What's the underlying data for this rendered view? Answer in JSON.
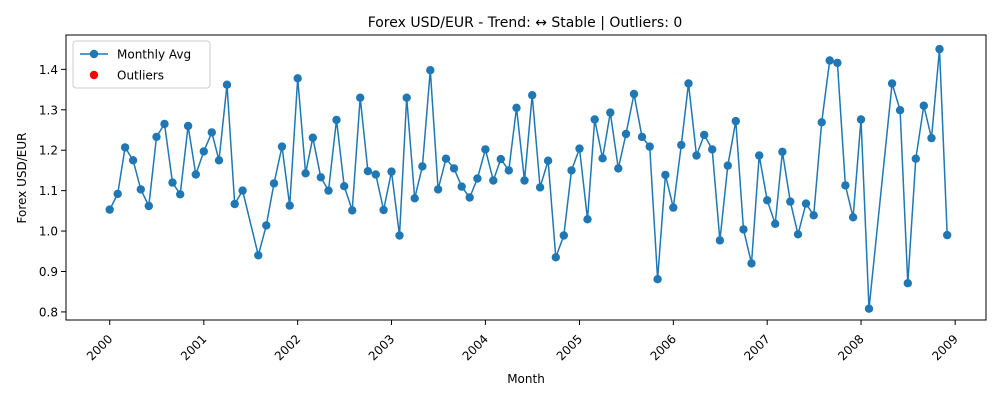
{
  "chart_data": {
    "type": "line",
    "title": "Forex USD/EUR - Trend: ↔ Stable | Outliers: 0",
    "xlabel": "Month",
    "ylabel": "Forex USD/EUR",
    "x_axis": {
      "type": "date",
      "range": [
        "1999-07-15",
        "2009-05-01"
      ],
      "ticks": [
        {
          "value": "2000-01-01",
          "label": "2000"
        },
        {
          "value": "2001-01-01",
          "label": "2001"
        },
        {
          "value": "2002-01-01",
          "label": "2002"
        },
        {
          "value": "2003-01-01",
          "label": "2003"
        },
        {
          "value": "2004-01-01",
          "label": "2004"
        },
        {
          "value": "2005-01-01",
          "label": "2005"
        },
        {
          "value": "2006-01-01",
          "label": "2006"
        },
        {
          "value": "2007-01-01",
          "label": "2007"
        },
        {
          "value": "2008-01-01",
          "label": "2008"
        },
        {
          "value": "2009-01-01",
          "label": "2009"
        }
      ]
    },
    "y_axis": {
      "range": [
        0.78,
        1.485
      ],
      "ticks": [
        {
          "value": 0.8,
          "label": "0.8"
        },
        {
          "value": 0.9,
          "label": "0.9"
        },
        {
          "value": 1.0,
          "label": "1.0"
        },
        {
          "value": 1.1,
          "label": "1.1"
        },
        {
          "value": 1.2,
          "label": "1.2"
        },
        {
          "value": 1.3,
          "label": "1.3"
        },
        {
          "value": 1.4,
          "label": "1.4"
        }
      ]
    },
    "grid": false,
    "legend": {
      "placement": "top-left",
      "entries": [
        {
          "label": "Monthly Avg",
          "marker": "line-circle",
          "color": "#1f77b4"
        },
        {
          "label": "Outliers",
          "marker": "circle",
          "color": "#ff0000"
        }
      ]
    },
    "series": [
      {
        "name": "Monthly Avg",
        "color": "#1f77b4",
        "x": [
          "2000-01-01",
          "2000-02-01",
          "2000-03-01",
          "2000-04-01",
          "2000-05-01",
          "2000-06-01",
          "2000-07-01",
          "2000-08-01",
          "2000-09-01",
          "2000-10-01",
          "2000-11-01",
          "2000-12-01",
          "2001-01-01",
          "2001-02-01",
          "2001-03-01",
          "2001-04-01",
          "2001-05-01",
          "2001-06-01",
          "2001-07-01",
          "2001-08-01",
          "2001-09-01",
          "2001-10-01",
          "2001-11-01",
          "2001-12-01",
          "2002-01-01",
          "2002-02-01",
          "2002-03-01",
          "2002-04-01",
          "2002-05-01",
          "2002-06-01",
          "2002-07-01",
          "2002-08-01",
          "2002-09-01",
          "2002-10-01",
          "2002-11-01",
          "2002-12-01",
          "2003-01-01",
          "2003-02-01",
          "2003-03-01",
          "2003-04-01",
          "2003-05-01",
          "2003-06-01",
          "2003-07-01",
          "2003-08-01",
          "2003-09-01",
          "2003-10-01",
          "2003-11-01",
          "2003-12-01",
          "2004-01-01",
          "2004-02-01",
          "2004-03-01",
          "2004-04-01",
          "2004-05-01",
          "2004-06-01",
          "2004-07-01",
          "2004-08-01",
          "2004-09-01",
          "2004-10-01",
          "2004-11-01",
          "2004-12-01",
          "2005-01-01",
          "2005-02-01",
          "2005-03-01",
          "2005-04-01",
          "2005-05-01",
          "2005-06-01",
          "2005-07-01",
          "2005-08-01",
          "2005-09-01",
          "2005-10-01",
          "2005-11-01",
          "2005-12-01",
          "2006-01-01",
          "2006-02-01",
          "2006-03-01",
          "2006-04-01",
          "2006-05-01",
          "2006-06-01",
          "2006-07-01",
          "2006-08-01",
          "2006-09-01",
          "2006-10-01",
          "2006-11-01",
          "2006-12-01",
          "2007-01-01",
          "2007-02-01",
          "2007-03-01",
          "2007-04-01",
          "2007-05-01",
          "2007-06-01",
          "2007-07-01",
          "2007-08-01",
          "2007-09-01",
          "2007-10-01",
          "2007-11-01",
          "2007-12-01",
          "2008-01-01",
          "2008-02-01",
          "2008-03-01",
          "2008-04-01",
          "2008-05-01",
          "2008-06-01",
          "2008-07-01",
          "2008-08-01",
          "2008-09-01",
          "2008-10-01",
          "2008-11-01",
          "2008-12-01"
        ],
        "y": [
          1.053,
          1.092,
          1.207,
          1.175,
          1.103,
          1.062,
          1.233,
          1.265,
          1.12,
          1.091,
          1.26,
          1.14,
          1.197,
          1.244,
          1.175,
          1.362,
          1.067,
          1.1,
          null,
          0.94,
          1.014,
          1.118,
          1.209,
          1.063,
          1.378,
          1.143,
          1.231,
          1.133,
          1.1,
          1.275,
          1.111,
          1.051,
          1.33,
          1.148,
          1.14,
          1.052,
          1.147,
          0.989,
          1.33,
          1.081,
          1.16,
          1.398,
          1.103,
          1.179,
          1.155,
          1.11,
          1.083,
          1.13,
          1.202,
          1.125,
          1.178,
          1.15,
          1.305,
          1.125,
          1.336,
          1.108,
          1.174,
          0.935,
          0.989,
          1.15,
          1.204,
          1.029,
          1.276,
          1.18,
          1.293,
          1.155,
          1.24,
          1.339,
          1.233,
          1.209,
          0.881,
          1.139,
          1.058,
          1.213,
          1.365,
          1.187,
          1.238,
          1.202,
          0.977,
          1.162,
          1.272,
          1.004,
          0.92,
          1.187,
          1.076,
          1.018,
          1.196,
          1.073,
          0.992,
          1.068,
          1.039,
          1.269,
          1.422,
          1.416,
          1.113,
          1.034,
          1.276,
          0.808,
          null,
          null,
          1.365,
          1.299,
          0.871,
          1.179,
          1.31,
          1.23,
          1.45,
          0.99
        ]
      },
      {
        "name": "Outliers",
        "color": "#ff0000",
        "x": [],
        "y": []
      }
    ]
  }
}
